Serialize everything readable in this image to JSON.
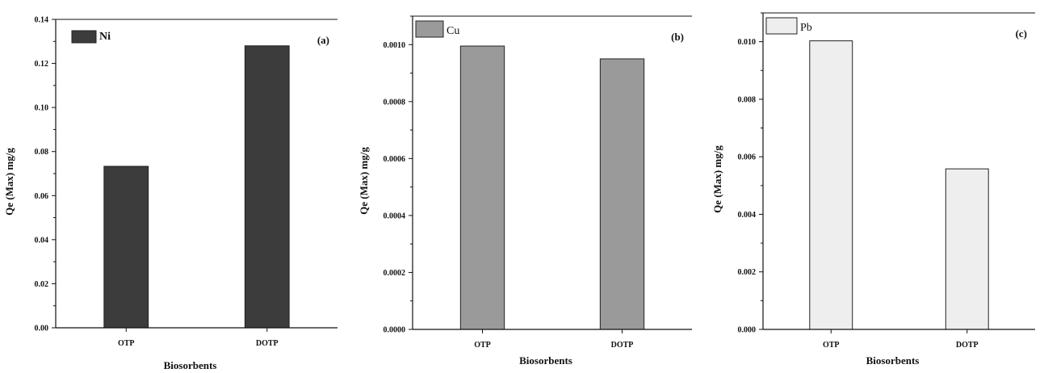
{
  "chart_data": [
    {
      "type": "bar",
      "panel_label": "(a)",
      "categories": [
        "OTP",
        "DOTP"
      ],
      "series": [
        {
          "name": "Ni",
          "values": [
            0.0733,
            0.128
          ]
        }
      ],
      "bar_color": "#3c3c3c",
      "xlabel": "Biosorbents",
      "ylabel": "Qe (Max) mg/g",
      "ylim": [
        0,
        0.14
      ],
      "yticks": [
        "0.00",
        "0.02",
        "0.04",
        "0.06",
        "0.08",
        "0.10",
        "0.12",
        "0.14"
      ],
      "legend": "top-left",
      "grid": false
    },
    {
      "type": "bar",
      "panel_label": "(b)",
      "categories": [
        "OTP",
        "DOTP"
      ],
      "series": [
        {
          "name": "Cu",
          "values": [
            0.000995,
            0.00095
          ]
        }
      ],
      "bar_color": "#9a9a9a",
      "xlabel": "Biosorbents",
      "ylabel": "Qe (Max) mg/g",
      "ylim": [
        0,
        0.0011
      ],
      "yticks": [
        "0.0000",
        "0.0002",
        "0.0004",
        "0.0006",
        "0.0008",
        "0.0010"
      ],
      "legend": "top-left",
      "grid": false
    },
    {
      "type": "bar",
      "panel_label": "(c)",
      "categories": [
        "OTP",
        "DOTP"
      ],
      "series": [
        {
          "name": "Pb",
          "values": [
            0.01003,
            0.00558
          ]
        }
      ],
      "bar_color": "#eeeeee",
      "xlabel": "Biosorbents",
      "ylabel": "Qe (Max) mg/g",
      "ylim": [
        0,
        0.011
      ],
      "yticks": [
        "0.000",
        "0.002",
        "0.004",
        "0.006",
        "0.008",
        "0.010"
      ],
      "legend": "top-left",
      "grid": false
    }
  ]
}
